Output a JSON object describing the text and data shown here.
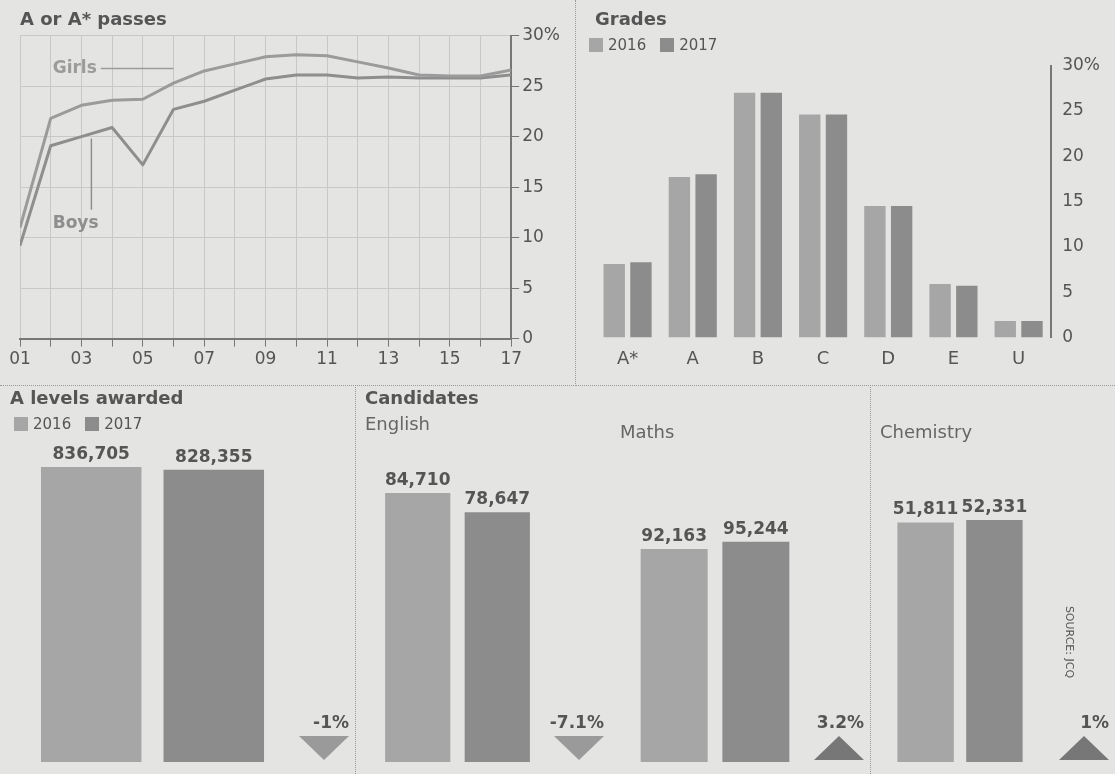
{
  "chart_data": [
    {
      "type": "line",
      "title": "A or A* passes",
      "x": [
        2001,
        2002,
        2003,
        2004,
        2005,
        2006,
        2007,
        2008,
        2009,
        2010,
        2011,
        2012,
        2013,
        2014,
        2015,
        2016,
        2017
      ],
      "series": [
        {
          "name": "Girls",
          "color": "#9b9b9b",
          "values": [
            11.0,
            21.8,
            23.1,
            23.6,
            23.7,
            25.3,
            26.5,
            27.2,
            27.9,
            28.1,
            28.0,
            27.4,
            26.8,
            26.1,
            26.0,
            26.0,
            26.6
          ]
        },
        {
          "name": "Boys",
          "color": "#8e8e8e",
          "values": [
            9.2,
            19.1,
            20.0,
            20.9,
            17.2,
            22.7,
            23.5,
            24.6,
            25.7,
            26.1,
            26.1,
            25.8,
            25.9,
            25.8,
            25.8,
            25.8,
            26.1
          ]
        }
      ],
      "xlim": [
        2001,
        2017
      ],
      "xticks": [
        {
          "value": 2001,
          "label": "01"
        },
        {
          "value": 2002,
          "label": null
        },
        {
          "value": 2003,
          "label": "03"
        },
        {
          "value": 2004,
          "label": null
        },
        {
          "value": 2005,
          "label": "05"
        },
        {
          "value": 2006,
          "label": null
        },
        {
          "value": 2007,
          "label": "07"
        },
        {
          "value": 2008,
          "label": null
        },
        {
          "value": 2009,
          "label": "09"
        },
        {
          "value": 2010,
          "label": null
        },
        {
          "value": 2011,
          "label": "11"
        },
        {
          "value": 2012,
          "label": null
        },
        {
          "value": 2013,
          "label": "13"
        },
        {
          "value": 2014,
          "label": null
        },
        {
          "value": 2015,
          "label": "15"
        },
        {
          "value": 2016,
          "label": null
        },
        {
          "value": 2017,
          "label": "17"
        }
      ],
      "ylim": [
        0,
        30
      ],
      "yticks": [
        0,
        5,
        10,
        15,
        20,
        25,
        {
          "value": 30,
          "label": "30%"
        }
      ],
      "grid": true,
      "marker": "none"
    },
    {
      "type": "bar",
      "title": "Grades",
      "categories": [
        "A*",
        "A",
        "B",
        "C",
        "D",
        "E",
        "U"
      ],
      "series": [
        {
          "name": "2016",
          "color": "#a6a6a6",
          "values": [
            8.1,
            17.7,
            27.0,
            24.6,
            14.5,
            5.9,
            1.8
          ]
        },
        {
          "name": "2017",
          "color": "#8c8c8c",
          "values": [
            8.3,
            18.0,
            27.0,
            24.6,
            14.5,
            5.7,
            1.8
          ]
        }
      ],
      "ylim": [
        0,
        30
      ],
      "yticks": [
        0,
        5,
        10,
        15,
        20,
        25,
        {
          "value": 30,
          "label": "30%"
        }
      ],
      "legend": "top left"
    },
    {
      "type": "bar",
      "title": "A levels awarded",
      "categories": [
        null
      ],
      "series": [
        {
          "name": "2016",
          "color": "#a6a6a6",
          "values": [
            836705
          ],
          "value_labels": [
            "836,705"
          ]
        },
        {
          "name": "2017",
          "color": "#8c8c8c",
          "values": [
            828355
          ],
          "value_labels": [
            "828,355"
          ]
        }
      ],
      "legend": "top left",
      "tick_labels": false,
      "annotations": [
        "-1%"
      ]
    },
    {
      "type": "bar",
      "title": "Candidates",
      "subtitle": "English",
      "categories": [
        null
      ],
      "series": [
        {
          "color": "#a6a6a6",
          "values": [
            84710
          ],
          "value_labels": [
            "84,710"
          ]
        },
        {
          "color": "#8c8c8c",
          "values": [
            78647
          ],
          "value_labels": [
            "78,647"
          ]
        }
      ],
      "tick_labels": false,
      "annotations": [
        "-7.1%"
      ]
    },
    {
      "type": "bar",
      "subtitle": "Maths",
      "categories": [
        null
      ],
      "series": [
        {
          "color": "#a6a6a6",
          "values": [
            92163
          ],
          "value_labels": [
            "92,163"
          ]
        },
        {
          "color": "#8c8c8c",
          "values": [
            95244
          ],
          "value_labels": [
            "95,244"
          ]
        }
      ],
      "tick_labels": false,
      "annotations": [
        "3.2%"
      ]
    },
    {
      "type": "bar",
      "subtitle": "Chemistry",
      "categories": [
        null
      ],
      "series": [
        {
          "color": "#a6a6a6",
          "values": [
            51811
          ],
          "value_labels": [
            "51,811"
          ]
        },
        {
          "color": "#8c8c8c",
          "values": [
            52331
          ],
          "value_labels": [
            "52,331"
          ]
        }
      ],
      "tick_labels": false,
      "annotations": [
        "1%",
        "SOURCE: JCQ"
      ]
    }
  ]
}
